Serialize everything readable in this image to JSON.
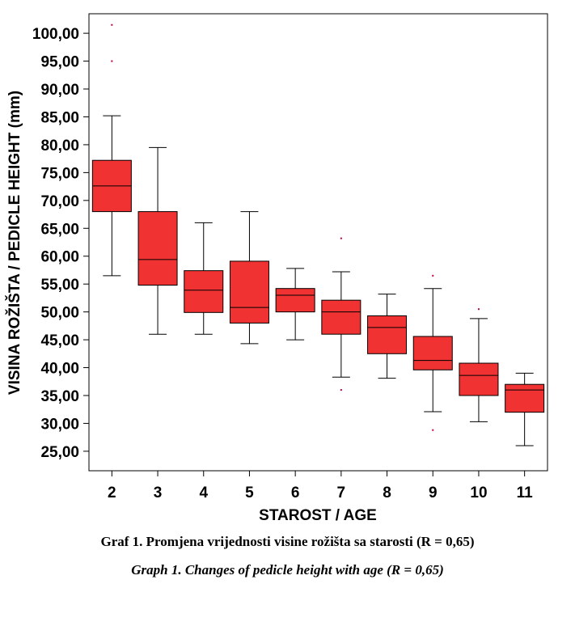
{
  "chart_data": {
    "type": "box",
    "xlabel": "STAROST / AGE",
    "ylabel": "VISINA ROŽIŠTA / PEDICLE HEIGHT (mm)",
    "ylim": [
      21.5,
      103.5
    ],
    "yticks": [
      "25,00",
      "30,00",
      "35,00",
      "40,00",
      "45,00",
      "50,00",
      "55,00",
      "60,00",
      "65,00",
      "70,00",
      "75,00",
      "80,00",
      "85,00",
      "90,00",
      "95,00",
      "100,00"
    ],
    "ytick_values": [
      25,
      30,
      35,
      40,
      45,
      50,
      55,
      60,
      65,
      70,
      75,
      80,
      85,
      90,
      95,
      100
    ],
    "grid": false,
    "box_color": "#f03232",
    "outlier_color": "#c0003c",
    "categories": [
      "2",
      "3",
      "4",
      "5",
      "6",
      "7",
      "8",
      "9",
      "10",
      "11"
    ],
    "boxes": [
      {
        "category": "2",
        "whisker_low": 56.5,
        "q1": 68.0,
        "median": 72.6,
        "q3": 77.2,
        "whisker_high": 85.2,
        "outliers": [
          95.0,
          101.5
        ]
      },
      {
        "category": "3",
        "whisker_low": 46.0,
        "q1": 54.8,
        "median": 59.4,
        "q3": 68.0,
        "whisker_high": 79.5,
        "outliers": []
      },
      {
        "category": "4",
        "whisker_low": 46.0,
        "q1": 49.9,
        "median": 53.9,
        "q3": 57.4,
        "whisker_high": 66.0,
        "outliers": []
      },
      {
        "category": "5",
        "whisker_low": 44.3,
        "q1": 48.0,
        "median": 50.8,
        "q3": 59.1,
        "whisker_high": 68.0,
        "outliers": []
      },
      {
        "category": "6",
        "whisker_low": 45.0,
        "q1": 50.0,
        "median": 53.0,
        "q3": 54.2,
        "whisker_high": 57.8,
        "outliers": []
      },
      {
        "category": "7",
        "whisker_low": 38.3,
        "q1": 46.0,
        "median": 50.0,
        "q3": 52.1,
        "whisker_high": 57.2,
        "outliers": [
          63.2,
          36.0
        ]
      },
      {
        "category": "8",
        "whisker_low": 38.1,
        "q1": 42.5,
        "median": 47.2,
        "q3": 49.3,
        "whisker_high": 53.2,
        "outliers": []
      },
      {
        "category": "9",
        "whisker_low": 32.1,
        "q1": 39.6,
        "median": 41.3,
        "q3": 45.6,
        "whisker_high": 54.2,
        "outliers": [
          56.5,
          28.8
        ]
      },
      {
        "category": "10",
        "whisker_low": 30.3,
        "q1": 35.0,
        "median": 38.6,
        "q3": 40.8,
        "whisker_high": 48.8,
        "outliers": [
          50.5
        ]
      },
      {
        "category": "11",
        "whisker_low": 26.0,
        "q1": 32.0,
        "median": 36.0,
        "q3": 37.0,
        "whisker_high": 39.0,
        "outliers": []
      }
    ]
  },
  "captions": {
    "croatian": "Graf 1. Promjena vrijednosti visine rožišta sa starosti (R = 0,65)",
    "english": "Graph 1. Changes of pedicle height with age (R = 0,65)"
  }
}
